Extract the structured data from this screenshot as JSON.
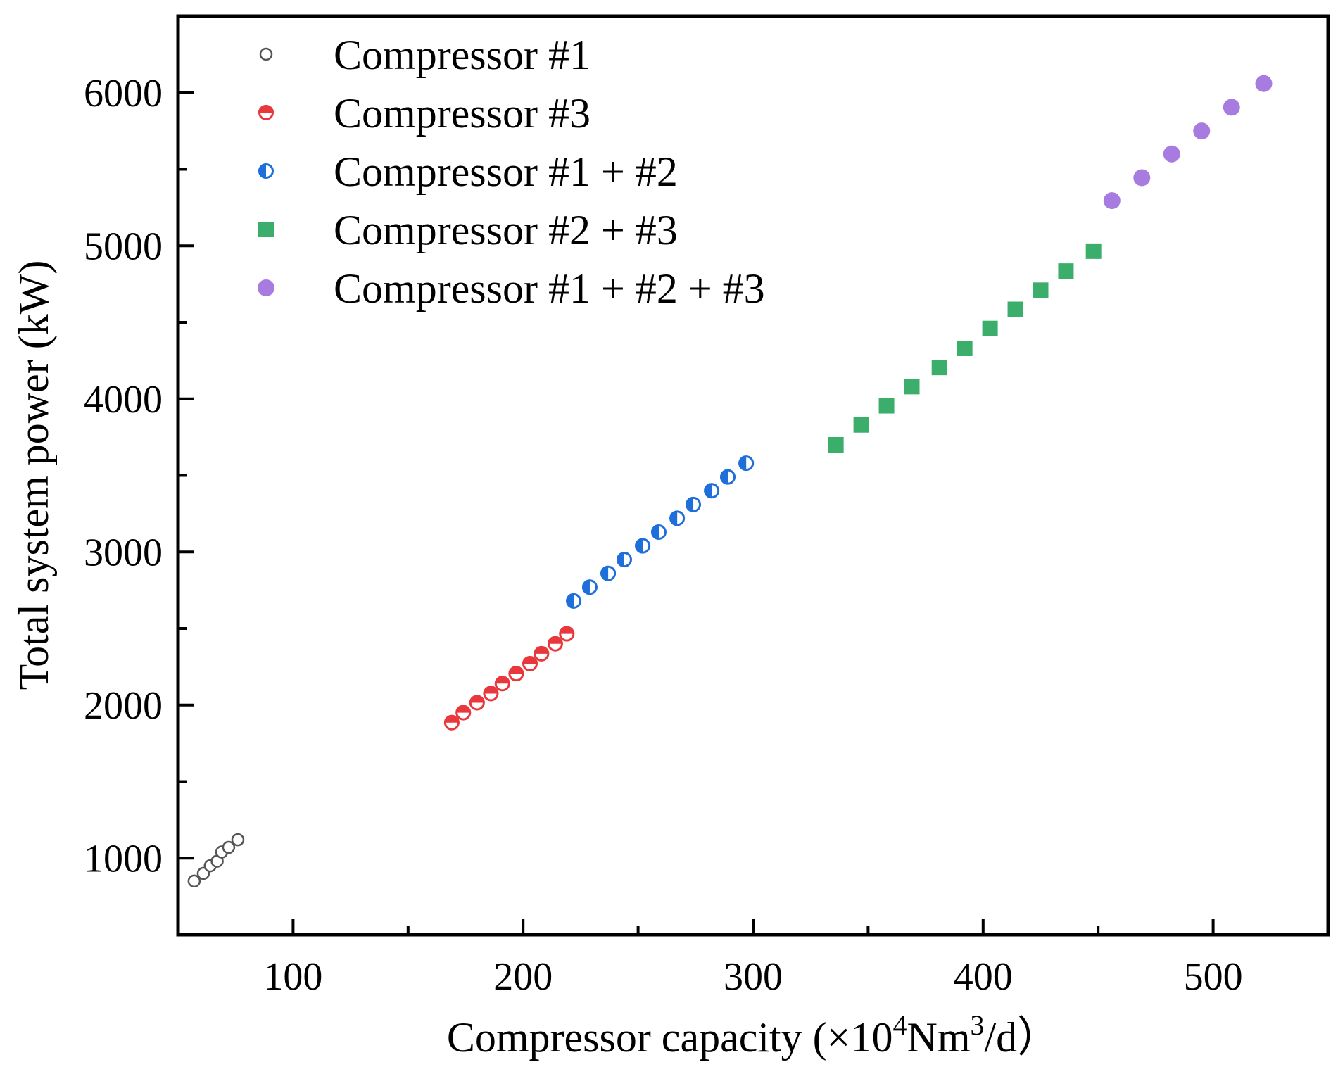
{
  "chart_data": {
    "type": "scatter",
    "title": "",
    "xlabel": {
      "main": "Compressor capacity (×10",
      "sup1": "4",
      "mid": "Nm",
      "sup2": "3",
      "tail": "/d）"
    },
    "ylabel": "Total system power (kW)",
    "xlim": [
      50,
      550
    ],
    "ylim": [
      500,
      6500
    ],
    "xticks": [
      100,
      200,
      300,
      400,
      500
    ],
    "xtick_labels": [
      "100",
      "200",
      "300",
      "400",
      "500"
    ],
    "xminor": [
      150,
      250,
      350,
      450
    ],
    "yticks": [
      1000,
      2000,
      3000,
      4000,
      5000,
      6000
    ],
    "ytick_labels": [
      "1000",
      "2000",
      "3000",
      "4000",
      "5000",
      "6000"
    ],
    "yminor": [
      1500,
      2500,
      3500,
      4500,
      5500
    ],
    "grid": false,
    "legend_position": "top-left",
    "series": [
      {
        "name": "Compressor #1",
        "marker": "open-circle-small",
        "color": "#555555",
        "x": [
          57,
          61,
          64,
          67,
          69,
          72,
          76
        ],
        "y": [
          850,
          900,
          950,
          980,
          1040,
          1070,
          1120
        ]
      },
      {
        "name": "Compressor #3",
        "marker": "half-circle-horizontal",
        "color": "#e8383d",
        "x": [
          169,
          174,
          180,
          186,
          191,
          197,
          203,
          208,
          214,
          219
        ],
        "y": [
          1885,
          1950,
          2015,
          2075,
          2140,
          2205,
          2270,
          2335,
          2400,
          2465
        ]
      },
      {
        "name": "Compressor #1 + #2",
        "marker": "half-circle-vertical",
        "color": "#1f6fdb",
        "x": [
          222,
          229,
          237,
          244,
          252,
          259,
          267,
          274,
          282,
          289,
          297
        ],
        "y": [
          2680,
          2770,
          2860,
          2950,
          3040,
          3130,
          3220,
          3310,
          3400,
          3490,
          3580
        ]
      },
      {
        "name": "Compressor #2 + #3",
        "marker": "square",
        "color": "#3aae6a",
        "x": [
          336,
          347,
          358,
          369,
          381,
          392,
          403,
          414,
          425,
          436,
          448
        ],
        "y": [
          3700,
          3830,
          3955,
          4080,
          4205,
          4330,
          4460,
          4585,
          4710,
          4835,
          4965
        ]
      },
      {
        "name": "Compressor #1 + #2 + #3",
        "marker": "circle",
        "color": "#a77be0",
        "x": [
          456,
          469,
          482,
          495,
          508,
          522
        ],
        "y": [
          5295,
          5445,
          5600,
          5750,
          5905,
          6060
        ]
      }
    ]
  }
}
